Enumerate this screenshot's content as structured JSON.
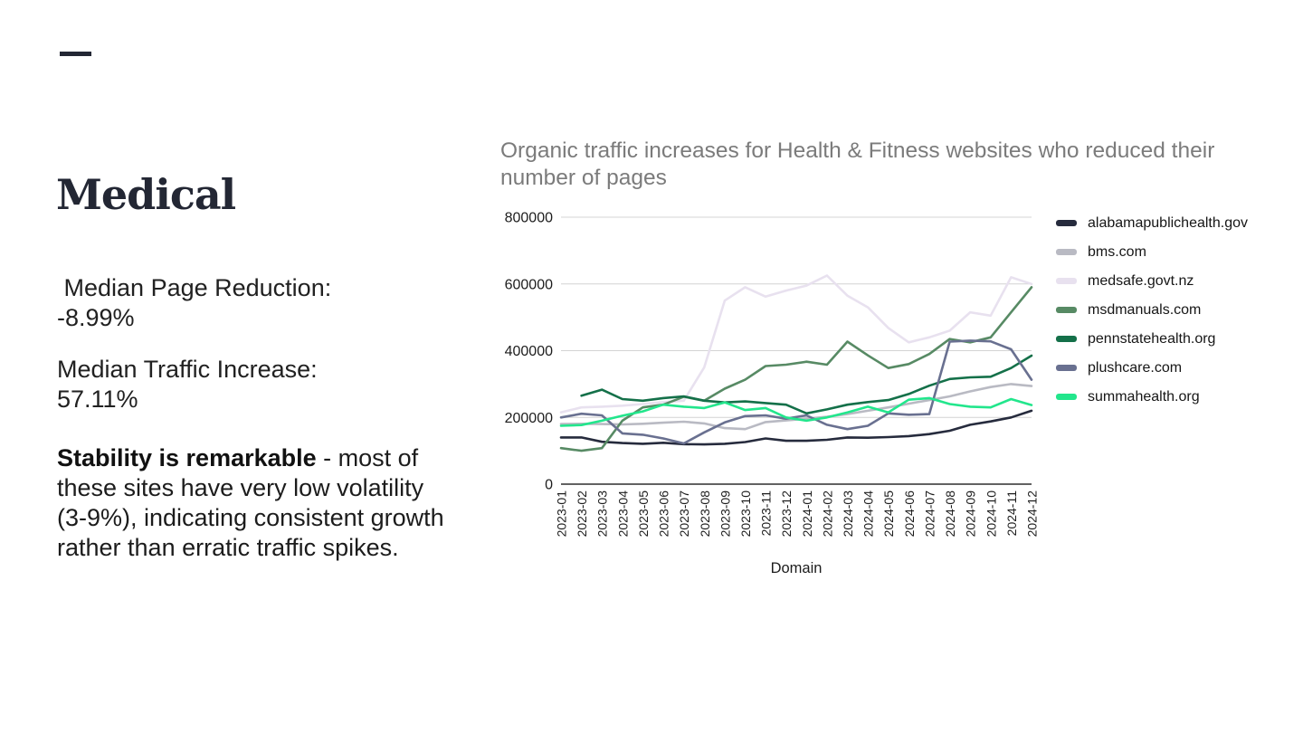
{
  "slide": {
    "title": "Medical",
    "stats": [
      {
        "label": " Median Page Reduction:",
        "value": "-8.99%"
      },
      {
        "label": "Median Traffic Increase:",
        "value": "57.11%"
      }
    ],
    "note": {
      "bold": "Stability is remarkable",
      "rest": " - most of these sites have very low volatility (3-9%), indicating consistent growth rather than erratic traffic spikes."
    }
  },
  "chart_data": {
    "type": "line",
    "title": "Organic traffic increases for Health & Fitness websites who reduced their number of pages",
    "xlabel": "Domain",
    "ylabel": "",
    "ylim": [
      0,
      800000
    ],
    "yticks": [
      0,
      200000,
      400000,
      600000,
      800000
    ],
    "grid": true,
    "legend_position": "right",
    "categories": [
      "2023-01",
      "2023-02",
      "2023-03",
      "2023-04",
      "2023-05",
      "2023-06",
      "2023-07",
      "2023-08",
      "2023-09",
      "2023-10",
      "2023-11",
      "2023-12",
      "2024-01",
      "2024-02",
      "2024-03",
      "2024-04",
      "2024-05",
      "2024-06",
      "2024-07",
      "2024-08",
      "2024-09",
      "2024-10",
      "2024-11",
      "2024-12"
    ],
    "series": [
      {
        "name": "alabamapublichealth.gov",
        "color": "#262b3d",
        "values": [
          140000,
          140000,
          127000,
          123000,
          121000,
          124000,
          120000,
          119000,
          121000,
          126000,
          137000,
          130000,
          130000,
          133000,
          140000,
          139000,
          141000,
          144000,
          150000,
          160000,
          178000,
          188000,
          200000,
          220000
        ]
      },
      {
        "name": "bms.com",
        "color": "#b9bac3",
        "values": [
          180000,
          181000,
          180000,
          179000,
          181000,
          184000,
          187000,
          182000,
          168000,
          165000,
          186000,
          191000,
          196000,
          202000,
          210000,
          220000,
          230000,
          241000,
          252000,
          263000,
          278000,
          291000,
          300000,
          294000
        ]
      },
      {
        "name": "medsafe.govt.nz",
        "color": "#e8e1ef",
        "values": [
          215000,
          230000,
          232000,
          235000,
          240000,
          246000,
          250000,
          350000,
          550000,
          590000,
          562000,
          580000,
          595000,
          625000,
          565000,
          530000,
          468000,
          425000,
          440000,
          460000,
          515000,
          505000,
          620000,
          600000
        ]
      },
      {
        "name": "msdmanuals.com",
        "color": "#578a64",
        "values": [
          108000,
          100000,
          108000,
          190000,
          230000,
          238000,
          262000,
          250000,
          286000,
          313000,
          354000,
          358000,
          367000,
          358000,
          427000,
          386000,
          348000,
          360000,
          390000,
          435000,
          425000,
          440000,
          515000,
          590000
        ]
      },
      {
        "name": "pennstatehealth.org",
        "color": "#147049",
        "values": [
          null,
          265000,
          283000,
          255000,
          250000,
          258000,
          263000,
          250000,
          245000,
          248000,
          243000,
          238000,
          212000,
          224000,
          238000,
          246000,
          252000,
          270000,
          295000,
          315000,
          320000,
          322000,
          348000,
          385000
        ]
      },
      {
        "name": "plushcare.com",
        "color": "#697090",
        "values": [
          200000,
          211000,
          206000,
          152000,
          148000,
          137000,
          122000,
          155000,
          185000,
          204000,
          206000,
          196000,
          206000,
          178000,
          165000,
          175000,
          212000,
          208000,
          210000,
          427000,
          430000,
          428000,
          404000,
          313000
        ]
      },
      {
        "name": "summahealth.org",
        "color": "#22e68c",
        "values": [
          175000,
          177000,
          190000,
          205000,
          218000,
          238000,
          232000,
          228000,
          245000,
          222000,
          228000,
          200000,
          190000,
          200000,
          215000,
          232000,
          215000,
          253000,
          258000,
          240000,
          232000,
          230000,
          255000,
          237000
        ]
      }
    ]
  }
}
